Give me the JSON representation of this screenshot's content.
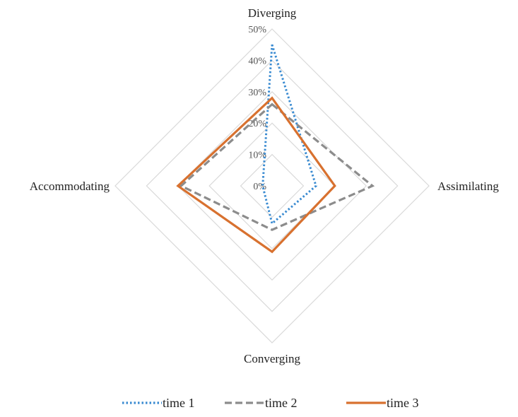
{
  "chart_data": {
    "type": "radar",
    "title": "",
    "axes": [
      "Diverging",
      "Assimilating",
      "Converging",
      "Accommodating"
    ],
    "ticks": [
      "0%",
      "10%",
      "20%",
      "30%",
      "40%",
      "50%"
    ],
    "rmax": 50,
    "grid": true,
    "legend_position": "bottom",
    "series": [
      {
        "name": "time 1",
        "values": [
          45,
          14,
          12,
          3
        ],
        "color": "#3A8BD1",
        "dash": "dotted"
      },
      {
        "name": "time 2",
        "values": [
          26,
          32,
          14,
          29
        ],
        "color": "#8C8C8C",
        "dash": "dashed"
      },
      {
        "name": "time 3",
        "values": [
          28,
          20,
          21,
          30
        ],
        "color": "#D8712F",
        "dash": "solid"
      }
    ]
  }
}
